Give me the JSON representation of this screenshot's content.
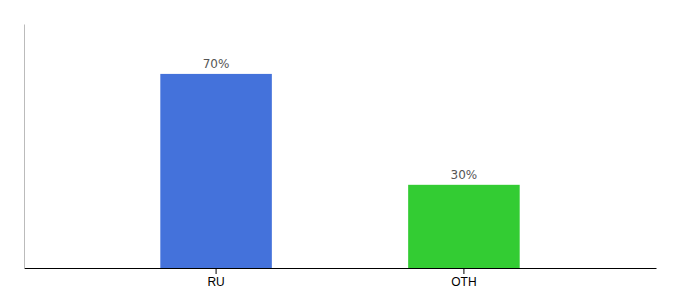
{
  "chart_data": {
    "type": "bar",
    "categories": [
      "RU",
      "OTH"
    ],
    "values": [
      70,
      30
    ],
    "value_labels": [
      "70%",
      "30%"
    ],
    "colors": [
      "#4472db",
      "#33cc33"
    ],
    "ylim": [
      0,
      88
    ],
    "data_labels": true,
    "tick_labels": "x",
    "grid": false
  }
}
